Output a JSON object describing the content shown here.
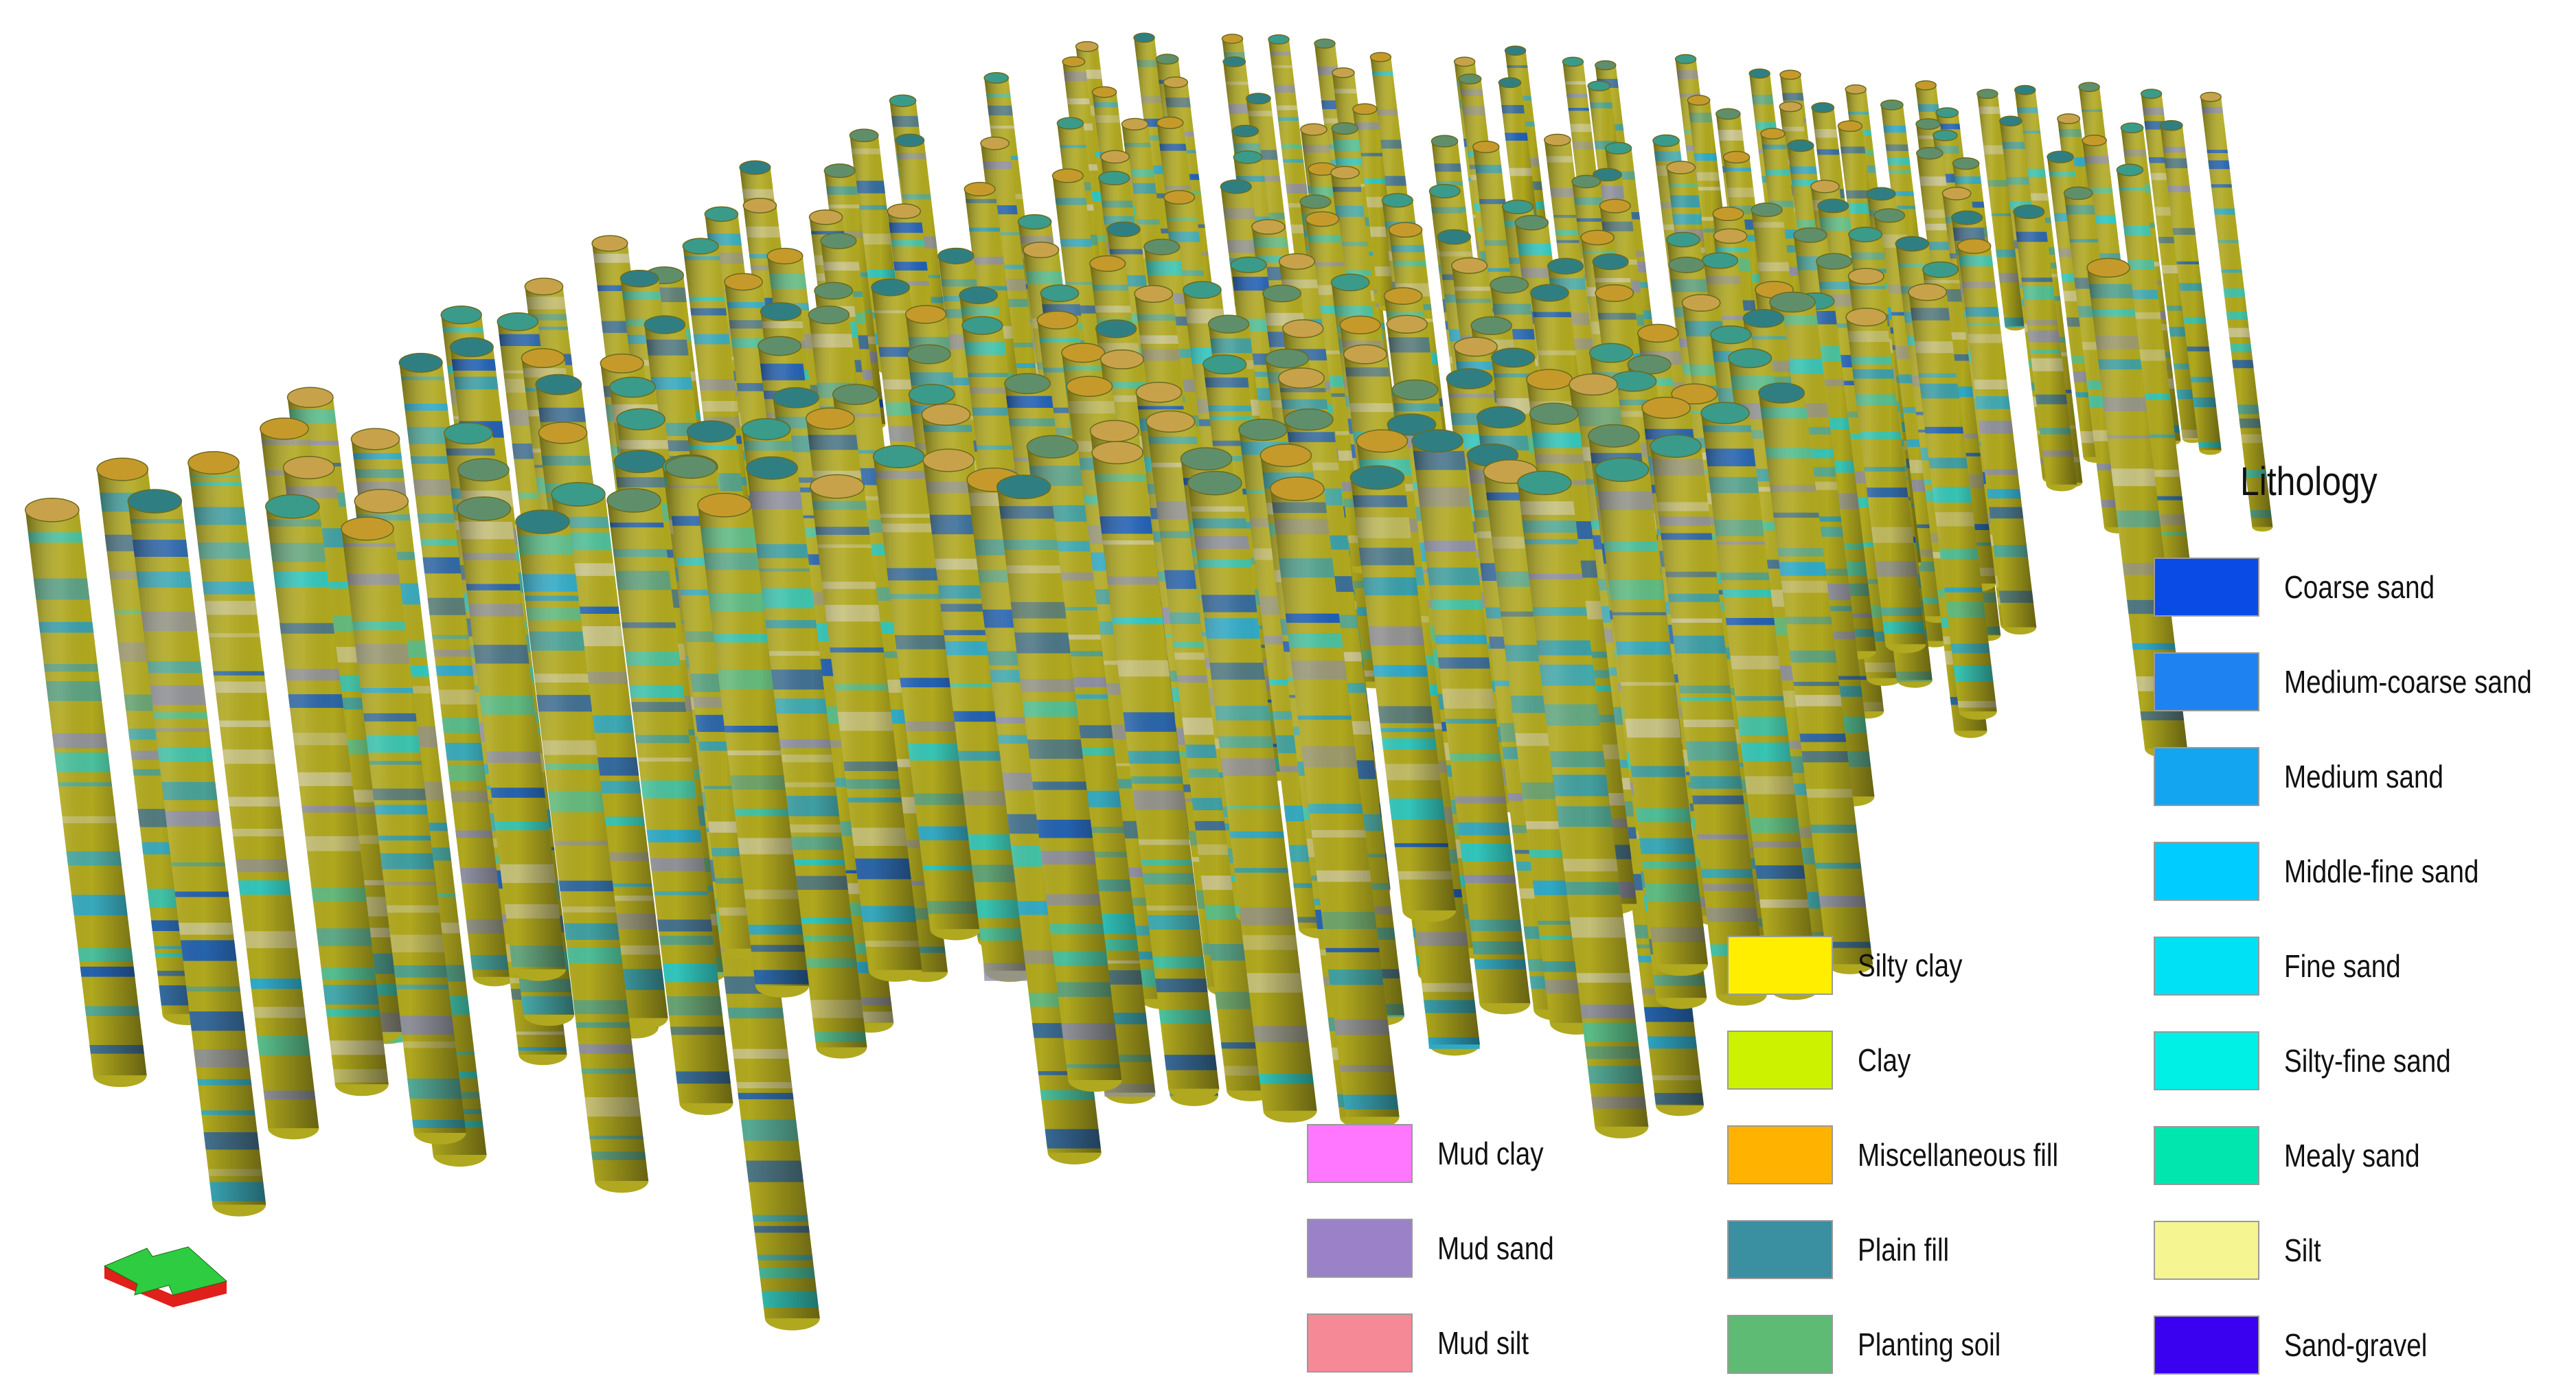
{
  "legend": {
    "title": "Lithology",
    "col1": [
      {
        "label": "Mud clay",
        "color": "#FF77FF"
      },
      {
        "label": "Mud sand",
        "color": "#9B82C8"
      },
      {
        "label": "Mud silt",
        "color": "#F58A96"
      }
    ],
    "col2": [
      {
        "label": "Silty clay",
        "color": "#FFEE00"
      },
      {
        "label": "Clay",
        "color": "#CCF200"
      },
      {
        "label": "Miscellaneous fill",
        "color": "#FFB300"
      },
      {
        "label": "Plain fill",
        "color": "#3A8FA0"
      },
      {
        "label": "Planting soil",
        "color": "#5DBB73"
      }
    ],
    "col3": [
      {
        "label": "Coarse sand",
        "color": "#0A4BE6"
      },
      {
        "label": "Medium-coarse sand",
        "color": "#1E82F0"
      },
      {
        "label": "Medium sand",
        "color": "#14A5F0"
      },
      {
        "label": "Middle-fine sand",
        "color": "#00CCFF"
      },
      {
        "label": "Fine sand",
        "color": "#00E1F5"
      },
      {
        "label": "Silty-fine sand",
        "color": "#00F0E6"
      },
      {
        "label": "Mealy sand",
        "color": "#00E6AF"
      },
      {
        "label": "Silt",
        "color": "#F5F591"
      },
      {
        "label": "Sand-gravel",
        "color": "#3A00F0"
      }
    ]
  },
  "boreholes": {
    "body_color": "#B0A81E",
    "band_colors": [
      "#2FA9C8",
      "#C9C48C",
      "#1F5FB5",
      "#2EC6C0",
      "#8D8FA4",
      "#3A9EA8"
    ],
    "top_colors": [
      "#2F7F82",
      "#C69A2A",
      "#3A9B8A",
      "#5F8F6A",
      "#C8A24A"
    ]
  },
  "compass": {
    "name": "orientation-arrow",
    "top_color": "#2ECC40",
    "side_color": "#E0201A"
  }
}
